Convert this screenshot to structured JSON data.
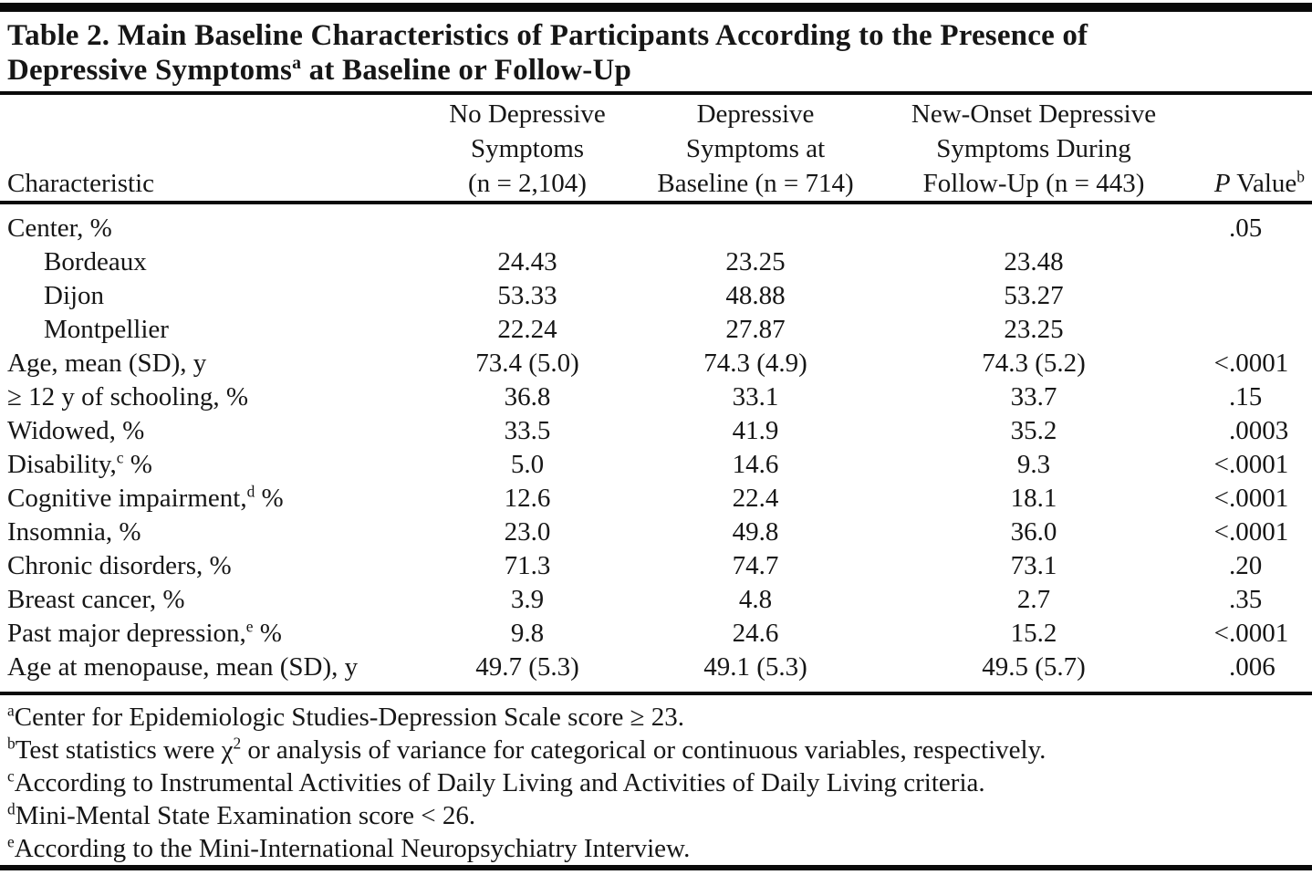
{
  "title": {
    "line1": "Table 2. Main Baseline Characteristics of Participants According to the Presence of",
    "line2_pre": "Depressive Symptoms",
    "line2_sup": "a",
    "line2_post": " at Baseline or Follow-Up"
  },
  "header": {
    "col1": "Characteristic",
    "col2_lines": [
      "No Depressive",
      "Symptoms",
      "(n = 2,104)"
    ],
    "col3_lines": [
      "Depressive",
      "Symptoms at",
      "Baseline (n = 714)"
    ],
    "col4_lines": [
      "New-Onset Depressive",
      "Symptoms During",
      "Follow-Up (n = 443)"
    ],
    "col5": {
      "italic": "P",
      "rest": " Value",
      "sup": "b"
    }
  },
  "rows": [
    {
      "pre": "Center, %",
      "sup": "",
      "post": "",
      "v1": "",
      "v2": "",
      "v3": "",
      "p_lt": "",
      "p": ".05"
    },
    {
      "pre": "Bordeaux",
      "sup": "",
      "post": "",
      "v1": "24.43",
      "v2": "23.25",
      "v3": "23.48",
      "p_lt": "",
      "p": ""
    },
    {
      "pre": "Dijon",
      "sup": "",
      "post": "",
      "v1": "53.33",
      "v2": "48.88",
      "v3": "53.27",
      "p_lt": "",
      "p": ""
    },
    {
      "pre": "Montpellier",
      "sup": "",
      "post": "",
      "v1": "22.24",
      "v2": "27.87",
      "v3": "23.25",
      "p_lt": "",
      "p": ""
    },
    {
      "pre": "Age, mean (SD), y",
      "sup": "",
      "post": "",
      "v1": "73.4 (5.0)",
      "v2": "74.3 (4.9)",
      "v3": "74.3 (5.2)",
      "p_lt": "<",
      "p": ".0001"
    },
    {
      "pre": "≥ 12 y of schooling, %",
      "sup": "",
      "post": "",
      "v1": "36.8",
      "v2": "33.1",
      "v3": "33.7",
      "p_lt": "",
      "p": ".15"
    },
    {
      "pre": "Widowed, %",
      "sup": "",
      "post": "",
      "v1": "33.5",
      "v2": "41.9",
      "v3": "35.2",
      "p_lt": "",
      "p": ".0003"
    },
    {
      "pre": "Disability,",
      "sup": "c",
      "post": " %",
      "v1": "5.0",
      "v2": "14.6",
      "v3": "9.3",
      "p_lt": "<",
      "p": ".0001"
    },
    {
      "pre": "Cognitive impairment,",
      "sup": "d",
      "post": " %",
      "v1": "12.6",
      "v2": "22.4",
      "v3": "18.1",
      "p_lt": "<",
      "p": ".0001"
    },
    {
      "pre": "Insomnia, %",
      "sup": "",
      "post": "",
      "v1": "23.0",
      "v2": "49.8",
      "v3": "36.0",
      "p_lt": "<",
      "p": ".0001"
    },
    {
      "pre": "Chronic disorders, %",
      "sup": "",
      "post": "",
      "v1": "71.3",
      "v2": "74.7",
      "v3": "73.1",
      "p_lt": "",
      "p": ".20"
    },
    {
      "pre": "Breast cancer, %",
      "sup": "",
      "post": "",
      "v1": "3.9",
      "v2": "4.8",
      "v3": "2.7",
      "p_lt": "",
      "p": ".35"
    },
    {
      "pre": "Past major depression,",
      "sup": "e",
      "post": " %",
      "v1": "9.8",
      "v2": "24.6",
      "v3": "15.2",
      "p_lt": "<",
      "p": ".0001"
    },
    {
      "pre": "Age at menopause, mean (SD), y",
      "sup": "",
      "post": "",
      "v1": "49.7 (5.3)",
      "v2": "49.1 (5.3)",
      "v3": "49.5 (5.7)",
      "p_lt": "",
      "p": ".006"
    }
  ],
  "footnotes": [
    {
      "marker": "a",
      "text1": "Center for Epidemiologic Studies-Depression Scale score ≥ 23.",
      "sup_mid": "",
      "text2": ""
    },
    {
      "marker": "b",
      "text1": "Test statistics were χ",
      "sup_mid": "2",
      "text2": " or analysis of variance for categorical or continuous variables, respectively."
    },
    {
      "marker": "c",
      "text1": "According to Instrumental Activities of Daily Living and Activities of Daily Living criteria.",
      "sup_mid": "",
      "text2": ""
    },
    {
      "marker": "d",
      "text1": "Mini-Mental State Examination score < 26.",
      "sup_mid": "",
      "text2": ""
    },
    {
      "marker": "e",
      "text1": "According to the Mini-International Neuropsychiatry Interview.",
      "sup_mid": "",
      "text2": ""
    }
  ],
  "colors": {
    "text": "#161616",
    "rule": "#0a0a0a",
    "background": "#ffffff"
  }
}
